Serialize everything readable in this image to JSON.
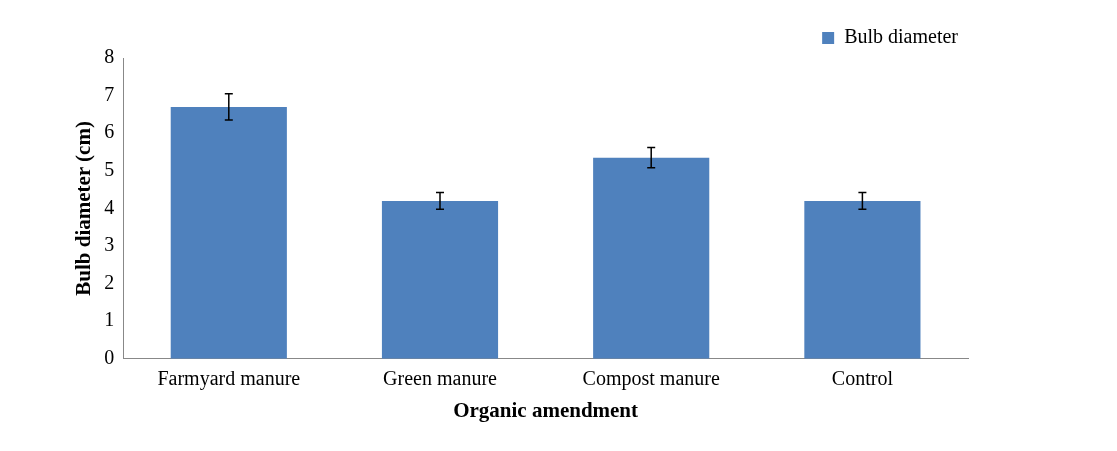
{
  "chart_data": {
    "type": "bar",
    "xlabel": "Organic amendment",
    "ylabel": "Bulb diameter (cm)",
    "categories": [
      "Farmyard manure",
      "Green manure",
      "Compost manure",
      "Control"
    ],
    "series": [
      {
        "name": "Bulb diameter",
        "color": "#4f81bd",
        "values": [
          6.7,
          4.2,
          5.35,
          4.2
        ],
        "errors": [
          0.35,
          0.22,
          0.27,
          0.22
        ]
      }
    ],
    "ylim": [
      0,
      8
    ],
    "yticks": [
      0,
      1,
      2,
      3,
      4,
      5,
      6,
      7,
      8
    ],
    "grid": false,
    "legend": "top right"
  }
}
